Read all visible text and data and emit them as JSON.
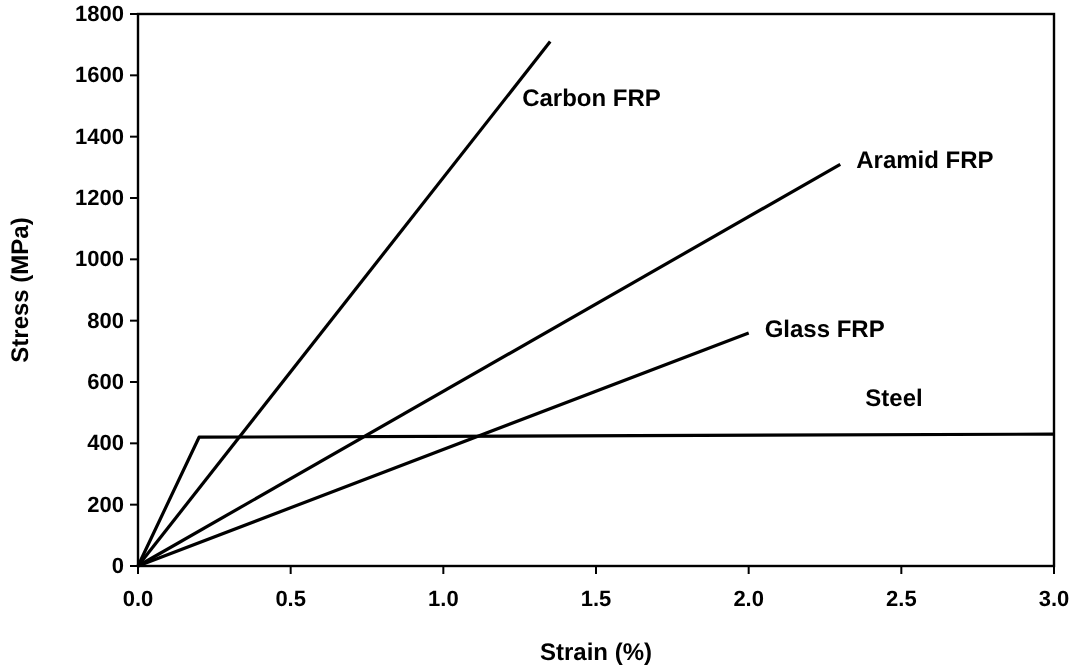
{
  "chart_data": {
    "type": "line",
    "xlabel": "Strain (%)",
    "ylabel": "Stress (MPa)",
    "xlim": [
      0,
      3
    ],
    "ylim": [
      0,
      1800
    ],
    "xticks": [
      {
        "value": 0,
        "label": "0.0"
      },
      {
        "value": 0.5,
        "label": "0.5"
      },
      {
        "value": 1,
        "label": "1.0"
      },
      {
        "value": 1.5,
        "label": "1.5"
      },
      {
        "value": 2,
        "label": "2.0"
      },
      {
        "value": 2.5,
        "label": "2.5"
      },
      {
        "value": 3,
        "label": "3.0"
      }
    ],
    "yticks": [
      0,
      200,
      400,
      600,
      800,
      1000,
      1200,
      1400,
      1600,
      1800
    ],
    "grid": false,
    "legend": false,
    "marker": "none",
    "line_style": "solid",
    "series": [
      {
        "name": "Carbon FRP",
        "color": "#000000",
        "x": [
          0,
          1.35
        ],
        "values": [
          0,
          1710
        ]
      },
      {
        "name": "Aramid FRP",
        "color": "#000000",
        "x": [
          0,
          2.3
        ],
        "values": [
          0,
          1310
        ]
      },
      {
        "name": "Glass FRP",
        "color": "#000000",
        "x": [
          0,
          2.0
        ],
        "values": [
          0,
          760
        ]
      },
      {
        "name": "Steel",
        "color": "#000000",
        "x": [
          0,
          0.2,
          3.0
        ],
        "values": [
          0,
          420,
          430
        ]
      }
    ]
  }
}
